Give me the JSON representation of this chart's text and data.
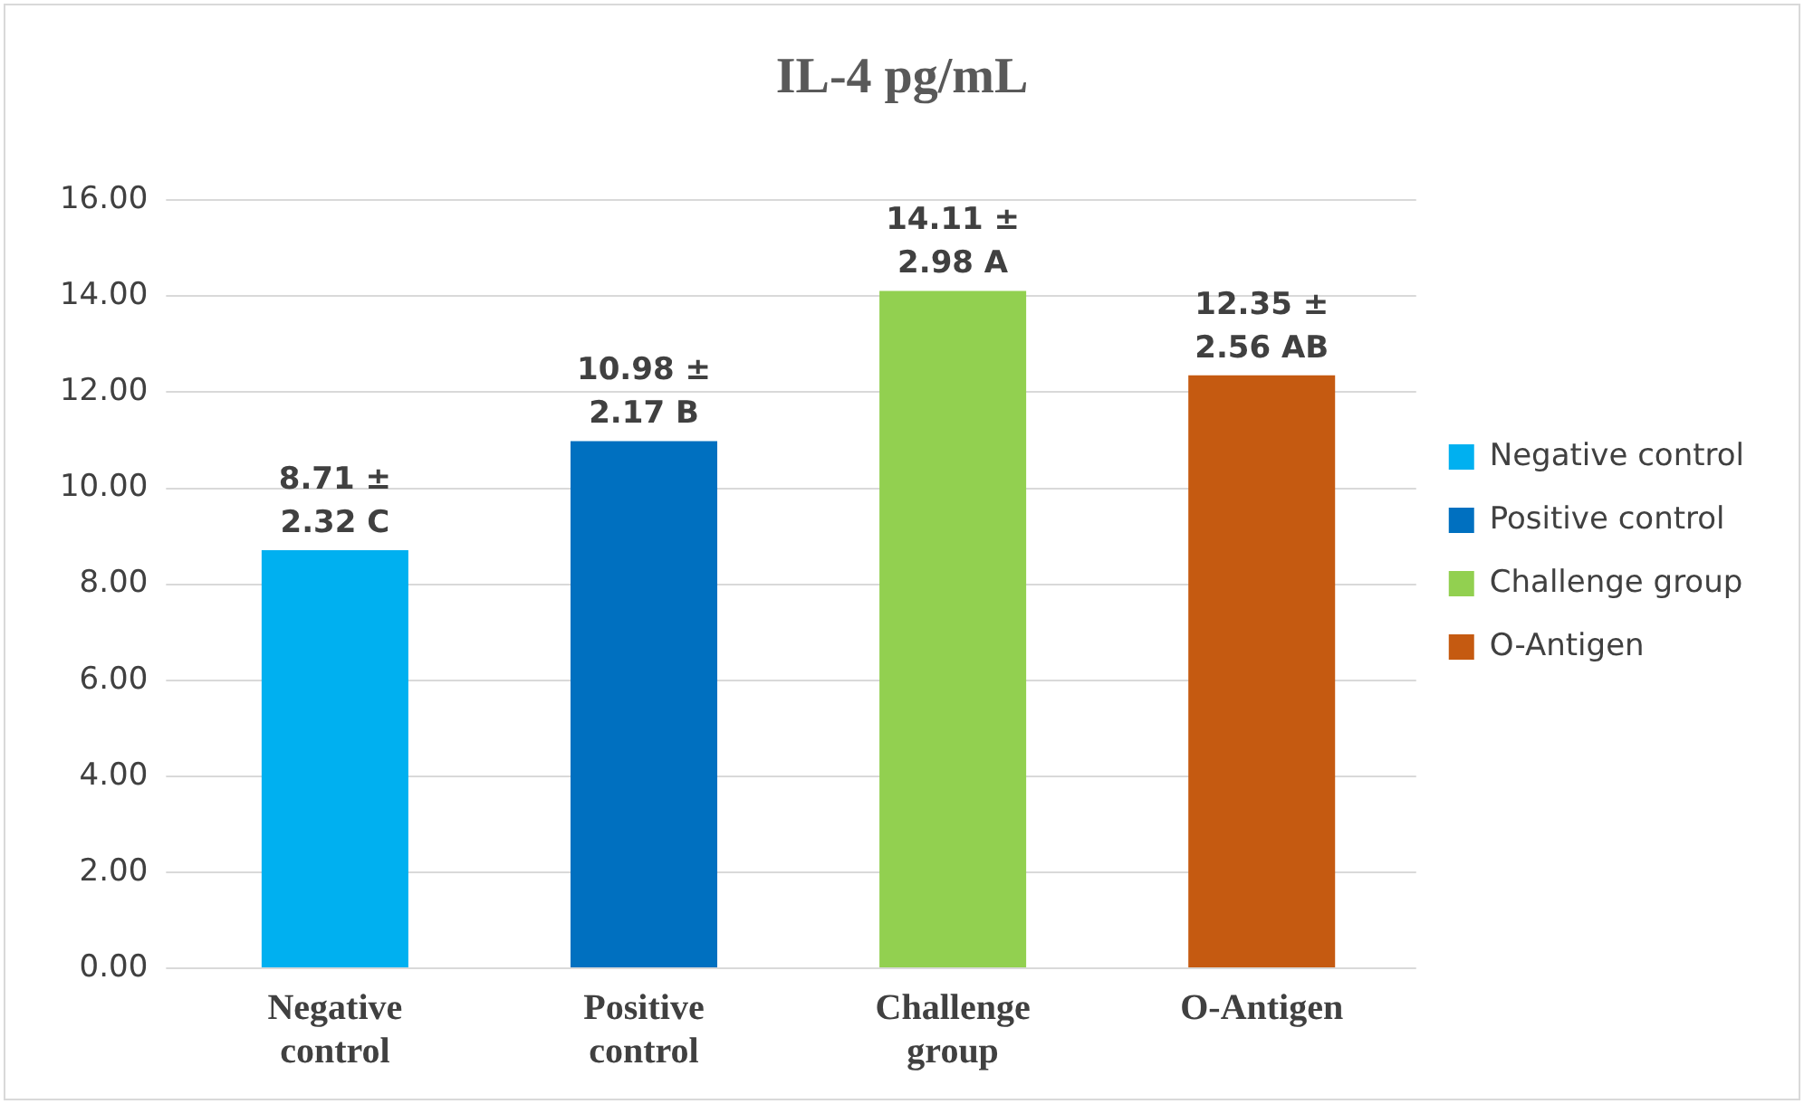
{
  "chart_data": {
    "type": "bar",
    "title": "IL-4 pg/mL",
    "categories": [
      "Negative control",
      "Positive control",
      "Challenge group",
      "O-Antigen"
    ],
    "series": [
      {
        "name": "Negative control",
        "color": "#00b0f0",
        "values": [
          8.71,
          null,
          null,
          null
        ],
        "value_labels": [
          "8.71 ± 2.32 C",
          null,
          null,
          null
        ]
      },
      {
        "name": "Positive control",
        "color": "#0070c0",
        "values": [
          null,
          10.98,
          null,
          null
        ],
        "value_labels": [
          null,
          "10.98 ± 2.17 B",
          null,
          null
        ]
      },
      {
        "name": "Challenge group",
        "color": "#92d050",
        "values": [
          null,
          null,
          14.11,
          null
        ],
        "value_labels": [
          null,
          null,
          "14.11 ± 2.98 A",
          null
        ]
      },
      {
        "name": "O-Antigen",
        "color": "#c55a11",
        "values": [
          null,
          null,
          null,
          12.35
        ],
        "value_labels": [
          null,
          null,
          null,
          "12.35 ± 2.56 AB"
        ]
      }
    ],
    "ylim": [
      0,
      16
    ],
    "yticks": [
      {
        "value": 0,
        "label": "0.00"
      },
      {
        "value": 2,
        "label": "2.00"
      },
      {
        "value": 4,
        "label": "4.00"
      },
      {
        "value": 6,
        "label": "6.00"
      },
      {
        "value": 8,
        "label": "8.00"
      },
      {
        "value": 10,
        "label": "10.00"
      },
      {
        "value": 12,
        "label": "12.00"
      },
      {
        "value": 14,
        "label": "14.00"
      },
      {
        "value": 16,
        "label": "16.00"
      }
    ],
    "grid": "y",
    "legend": "right"
  }
}
